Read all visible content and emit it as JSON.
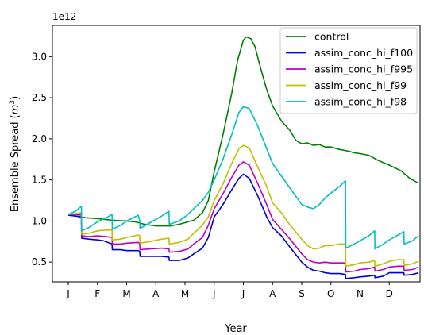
{
  "chart_data": {
    "type": "line",
    "title": "",
    "xlabel": "Year",
    "ylabel": "Ensemble Spread (m³)",
    "ylabel_parts": {
      "text": "Ensemble Spread (",
      "m": "m",
      "exp": "3",
      "close": ")"
    },
    "y_offset_text": "1e12",
    "xlim": [
      0,
      12
    ],
    "ylim": [
      0.26,
      3.38
    ],
    "x_ticks": [
      {
        "label": "J",
        "x": 0.0
      },
      {
        "label": "F",
        "x": 1.0
      },
      {
        "label": "M",
        "x": 2.0
      },
      {
        "label": "A",
        "x": 3.0
      },
      {
        "label": "M",
        "x": 4.0
      },
      {
        "label": "J",
        "x": 5.0
      },
      {
        "label": "J",
        "x": 6.0
      },
      {
        "label": "A",
        "x": 7.0
      },
      {
        "label": "S",
        "x": 8.0
      },
      {
        "label": "O",
        "x": 9.0
      },
      {
        "label": "N",
        "x": 10.0
      },
      {
        "label": "D",
        "x": 11.0
      }
    ],
    "y_ticks": [
      {
        "label": "0.5",
        "y": 0.5
      },
      {
        "label": "1.0",
        "y": 1.0
      },
      {
        "label": "1.5",
        "y": 1.5
      },
      {
        "label": "2.0",
        "y": 2.0
      },
      {
        "label": "2.5",
        "y": 2.5
      },
      {
        "label": "3.0",
        "y": 3.0
      }
    ],
    "legend_position": "upper right",
    "series": [
      {
        "name": "control",
        "color": "#008000",
        "points": [
          [
            0,
            1.08
          ],
          [
            0.4,
            1.05
          ],
          [
            0.6,
            1.04
          ],
          [
            1,
            1.03
          ],
          [
            1.5,
            1.01
          ],
          [
            2,
            1.0
          ],
          [
            2.3,
            0.99
          ],
          [
            2.6,
            0.96
          ],
          [
            3,
            0.94
          ],
          [
            3.5,
            0.94
          ],
          [
            3.8,
            0.96
          ],
          [
            4,
            0.98
          ],
          [
            4.3,
            1.01
          ],
          [
            4.6,
            1.1
          ],
          [
            4.8,
            1.25
          ],
          [
            5,
            1.6
          ],
          [
            5.3,
            2.05
          ],
          [
            5.6,
            2.55
          ],
          [
            5.8,
            2.95
          ],
          [
            6,
            3.2
          ],
          [
            6.1,
            3.24
          ],
          [
            6.25,
            3.22
          ],
          [
            6.4,
            3.12
          ],
          [
            6.6,
            2.85
          ],
          [
            6.8,
            2.6
          ],
          [
            7,
            2.4
          ],
          [
            7.3,
            2.22
          ],
          [
            7.6,
            2.1
          ],
          [
            7.8,
            1.98
          ],
          [
            8,
            1.94
          ],
          [
            8.2,
            1.95
          ],
          [
            8.4,
            1.92
          ],
          [
            8.6,
            1.93
          ],
          [
            8.8,
            1.9
          ],
          [
            9,
            1.9
          ],
          [
            9.3,
            1.87
          ],
          [
            9.6,
            1.85
          ],
          [
            9.8,
            1.83
          ],
          [
            10,
            1.82
          ],
          [
            10.3,
            1.8
          ],
          [
            10.6,
            1.74
          ],
          [
            11,
            1.68
          ],
          [
            11.4,
            1.61
          ],
          [
            11.7,
            1.52
          ],
          [
            12,
            1.46
          ]
        ]
      },
      {
        "name": "assim_conc_hi_f100",
        "color": "#0000dd",
        "points": [
          [
            0,
            1.07
          ],
          [
            0.25,
            1.06
          ],
          [
            0.45,
            1.05
          ],
          [
            0.46,
            0.79
          ],
          [
            0.7,
            0.78
          ],
          [
            1,
            0.77
          ],
          [
            1.2,
            0.76
          ],
          [
            1.5,
            0.72
          ],
          [
            1.51,
            0.65
          ],
          [
            1.8,
            0.65
          ],
          [
            2,
            0.64
          ],
          [
            2.4,
            0.64
          ],
          [
            2.45,
            0.63
          ],
          [
            2.46,
            0.57
          ],
          [
            2.8,
            0.57
          ],
          [
            3.2,
            0.57
          ],
          [
            3.45,
            0.56
          ],
          [
            3.46,
            0.52
          ],
          [
            3.8,
            0.52
          ],
          [
            4.1,
            0.55
          ],
          [
            4.3,
            0.6
          ],
          [
            4.6,
            0.67
          ],
          [
            4.8,
            0.8
          ],
          [
            5,
            1.05
          ],
          [
            5.3,
            1.2
          ],
          [
            5.6,
            1.38
          ],
          [
            5.85,
            1.52
          ],
          [
            6,
            1.57
          ],
          [
            6.2,
            1.52
          ],
          [
            6.5,
            1.3
          ],
          [
            6.8,
            1.05
          ],
          [
            7,
            0.92
          ],
          [
            7.3,
            0.82
          ],
          [
            7.6,
            0.68
          ],
          [
            8,
            0.5
          ],
          [
            8.2,
            0.44
          ],
          [
            8.4,
            0.4
          ],
          [
            8.6,
            0.39
          ],
          [
            8.8,
            0.37
          ],
          [
            9,
            0.36
          ],
          [
            9.3,
            0.36
          ],
          [
            9.5,
            0.35
          ],
          [
            9.51,
            0.3
          ],
          [
            9.8,
            0.31
          ],
          [
            10,
            0.32
          ],
          [
            10.3,
            0.33
          ],
          [
            10.5,
            0.34
          ],
          [
            10.51,
            0.31
          ],
          [
            10.8,
            0.33
          ],
          [
            11,
            0.37
          ],
          [
            11.3,
            0.37
          ],
          [
            11.5,
            0.37
          ],
          [
            11.51,
            0.34
          ],
          [
            11.8,
            0.35
          ],
          [
            12,
            0.37
          ]
        ]
      },
      {
        "name": "assim_conc_hi_f995",
        "color": "#c000c0",
        "points": [
          [
            0,
            1.08
          ],
          [
            0.25,
            1.08
          ],
          [
            0.45,
            1.07
          ],
          [
            0.46,
            0.82
          ],
          [
            0.7,
            0.81
          ],
          [
            1,
            0.82
          ],
          [
            1.3,
            0.81
          ],
          [
            1.5,
            0.8
          ],
          [
            1.51,
            0.72
          ],
          [
            1.8,
            0.72
          ],
          [
            2,
            0.73
          ],
          [
            2.4,
            0.74
          ],
          [
            2.45,
            0.72
          ],
          [
            2.46,
            0.65
          ],
          [
            2.8,
            0.66
          ],
          [
            3.2,
            0.67
          ],
          [
            3.45,
            0.66
          ],
          [
            3.46,
            0.62
          ],
          [
            3.8,
            0.63
          ],
          [
            4.1,
            0.66
          ],
          [
            4.3,
            0.72
          ],
          [
            4.6,
            0.8
          ],
          [
            4.8,
            0.95
          ],
          [
            5,
            1.15
          ],
          [
            5.3,
            1.33
          ],
          [
            5.6,
            1.53
          ],
          [
            5.85,
            1.68
          ],
          [
            6,
            1.72
          ],
          [
            6.2,
            1.68
          ],
          [
            6.5,
            1.45
          ],
          [
            6.8,
            1.2
          ],
          [
            7,
            1.02
          ],
          [
            7.3,
            0.9
          ],
          [
            7.6,
            0.78
          ],
          [
            8,
            0.6
          ],
          [
            8.2,
            0.53
          ],
          [
            8.4,
            0.5
          ],
          [
            8.6,
            0.49
          ],
          [
            8.8,
            0.5
          ],
          [
            9,
            0.49
          ],
          [
            9.3,
            0.49
          ],
          [
            9.5,
            0.49
          ],
          [
            9.51,
            0.38
          ],
          [
            9.8,
            0.39
          ],
          [
            10,
            0.41
          ],
          [
            10.3,
            0.42
          ],
          [
            10.5,
            0.44
          ],
          [
            10.51,
            0.39
          ],
          [
            10.8,
            0.41
          ],
          [
            11,
            0.44
          ],
          [
            11.3,
            0.45
          ],
          [
            11.5,
            0.45
          ],
          [
            11.51,
            0.4
          ],
          [
            11.8,
            0.41
          ],
          [
            12,
            0.44
          ]
        ]
      },
      {
        "name": "assim_conc_hi_f99",
        "color": "#c0c000",
        "points": [
          [
            0,
            1.08
          ],
          [
            0.25,
            1.09
          ],
          [
            0.45,
            1.1
          ],
          [
            0.46,
            0.84
          ],
          [
            0.7,
            0.85
          ],
          [
            1,
            0.88
          ],
          [
            1.3,
            0.89
          ],
          [
            1.5,
            0.89
          ],
          [
            1.51,
            0.77
          ],
          [
            1.8,
            0.78
          ],
          [
            2,
            0.8
          ],
          [
            2.4,
            0.83
          ],
          [
            2.45,
            0.82
          ],
          [
            2.46,
            0.73
          ],
          [
            2.8,
            0.75
          ],
          [
            3.2,
            0.78
          ],
          [
            3.45,
            0.79
          ],
          [
            3.46,
            0.72
          ],
          [
            3.8,
            0.74
          ],
          [
            4.1,
            0.78
          ],
          [
            4.3,
            0.85
          ],
          [
            4.6,
            0.95
          ],
          [
            4.8,
            1.05
          ],
          [
            5,
            1.25
          ],
          [
            5.3,
            1.45
          ],
          [
            5.6,
            1.7
          ],
          [
            5.85,
            1.88
          ],
          [
            6,
            1.92
          ],
          [
            6.2,
            1.89
          ],
          [
            6.5,
            1.65
          ],
          [
            6.8,
            1.42
          ],
          [
            7,
            1.22
          ],
          [
            7.3,
            1.1
          ],
          [
            7.6,
            0.95
          ],
          [
            8,
            0.78
          ],
          [
            8.2,
            0.7
          ],
          [
            8.4,
            0.66
          ],
          [
            8.6,
            0.67
          ],
          [
            8.8,
            0.7
          ],
          [
            9,
            0.7
          ],
          [
            9.3,
            0.72
          ],
          [
            9.5,
            0.72
          ],
          [
            9.51,
            0.45
          ],
          [
            9.8,
            0.47
          ],
          [
            10,
            0.49
          ],
          [
            10.3,
            0.5
          ],
          [
            10.5,
            0.52
          ],
          [
            10.51,
            0.45
          ],
          [
            10.8,
            0.48
          ],
          [
            11,
            0.51
          ],
          [
            11.3,
            0.53
          ],
          [
            11.5,
            0.53
          ],
          [
            11.51,
            0.46
          ],
          [
            11.8,
            0.48
          ],
          [
            12,
            0.51
          ]
        ]
      },
      {
        "name": "assim_conc_hi_f98",
        "color": "#00c0c0",
        "points": [
          [
            0,
            1.08
          ],
          [
            0.25,
            1.12
          ],
          [
            0.45,
            1.18
          ],
          [
            0.46,
            0.88
          ],
          [
            0.7,
            0.92
          ],
          [
            1,
            0.99
          ],
          [
            1.3,
            1.04
          ],
          [
            1.5,
            1.08
          ],
          [
            1.51,
            0.9
          ],
          [
            1.8,
            0.95
          ],
          [
            2,
            1.0
          ],
          [
            2.4,
            1.07
          ],
          [
            2.45,
            1.0
          ],
          [
            2.46,
            0.91
          ],
          [
            2.8,
            0.98
          ],
          [
            3.2,
            1.06
          ],
          [
            3.45,
            1.12
          ],
          [
            3.46,
            0.96
          ],
          [
            3.8,
            1.0
          ],
          [
            4.1,
            1.08
          ],
          [
            4.3,
            1.15
          ],
          [
            4.6,
            1.25
          ],
          [
            4.8,
            1.35
          ],
          [
            5,
            1.5
          ],
          [
            5.3,
            1.75
          ],
          [
            5.6,
            2.05
          ],
          [
            5.85,
            2.32
          ],
          [
            6,
            2.39
          ],
          [
            6.2,
            2.37
          ],
          [
            6.5,
            2.15
          ],
          [
            6.8,
            1.88
          ],
          [
            7,
            1.7
          ],
          [
            7.3,
            1.55
          ],
          [
            7.6,
            1.4
          ],
          [
            8,
            1.2
          ],
          [
            8.2,
            1.17
          ],
          [
            8.4,
            1.15
          ],
          [
            8.6,
            1.2
          ],
          [
            8.8,
            1.28
          ],
          [
            9,
            1.34
          ],
          [
            9.3,
            1.42
          ],
          [
            9.5,
            1.49
          ],
          [
            9.51,
            0.67
          ],
          [
            9.8,
            0.72
          ],
          [
            10,
            0.76
          ],
          [
            10.3,
            0.82
          ],
          [
            10.5,
            0.88
          ],
          [
            10.51,
            0.66
          ],
          [
            10.8,
            0.72
          ],
          [
            11,
            0.77
          ],
          [
            11.3,
            0.83
          ],
          [
            11.5,
            0.87
          ],
          [
            11.51,
            0.72
          ],
          [
            11.8,
            0.76
          ],
          [
            12,
            0.82
          ]
        ]
      }
    ]
  }
}
